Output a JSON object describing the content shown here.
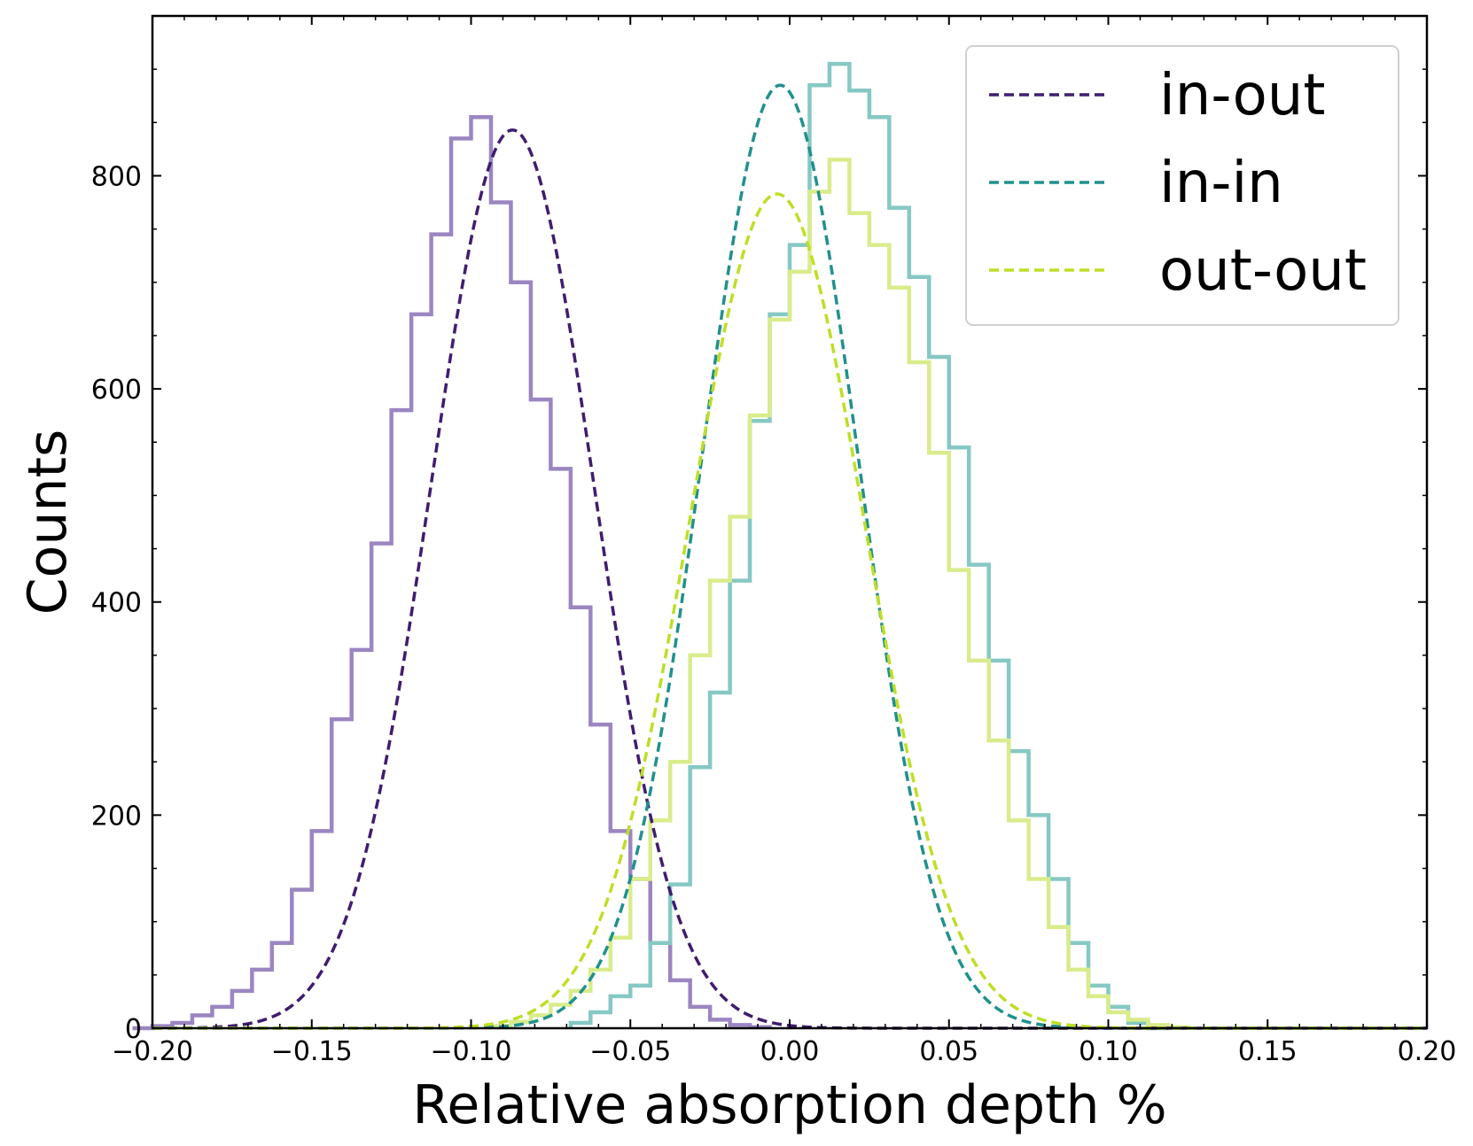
{
  "chart_data": {
    "type": "histogram",
    "xlabel": "Relative absorption depth %",
    "ylabel": "Counts",
    "xlim": [
      -0.2,
      0.2
    ],
    "ylim": [
      0,
      950
    ],
    "xticks": [
      -0.2,
      -0.15,
      -0.1,
      -0.05,
      0.0,
      0.05,
      0.1,
      0.15,
      0.2
    ],
    "xtick_labels": [
      "−0.20",
      "−0.15",
      "−0.10",
      "−0.05",
      "0.00",
      "0.05",
      "0.10",
      "0.15",
      "0.20"
    ],
    "yticks": [
      0,
      200,
      400,
      600,
      800
    ],
    "ytick_labels": [
      "0",
      "200",
      "400",
      "600",
      "800"
    ],
    "grid": false,
    "legend_position": "top-right",
    "bin_width": 0.00625,
    "series": [
      {
        "name": "in-out",
        "color": "#3f1d6e",
        "hist_color": "#9b86c2",
        "fit": {
          "mean": -0.087,
          "sigma": 0.0255,
          "amplitude": 843
        },
        "hist": {
          "start": -0.20625,
          "counts": [
            0,
            2,
            5,
            12,
            20,
            35,
            55,
            80,
            130,
            185,
            290,
            355,
            455,
            580,
            670,
            745,
            835,
            855,
            775,
            700,
            590,
            525,
            395,
            285,
            185,
            140,
            80,
            45,
            20,
            8,
            3,
            1
          ]
        }
      },
      {
        "name": "in-in",
        "color": "#21908d",
        "hist_color": "#86c8c4",
        "fit": {
          "mean": -0.003,
          "sigma": 0.0245,
          "amplitude": 885
        },
        "hist": {
          "start": -0.06875,
          "counts": [
            5,
            15,
            30,
            40,
            80,
            135,
            245,
            315,
            420,
            570,
            670,
            735,
            885,
            905,
            880,
            855,
            770,
            705,
            630,
            545,
            435,
            345,
            260,
            200,
            140,
            80,
            40,
            20,
            5,
            0
          ]
        }
      },
      {
        "name": "out-out",
        "color": "#bddf26",
        "hist_color": "#d9ec8c",
        "fit": {
          "mean": -0.004,
          "sigma": 0.0275,
          "amplitude": 783
        },
        "hist": {
          "start": -0.09375,
          "counts": [
            2,
            6,
            12,
            22,
            35,
            55,
            85,
            140,
            195,
            250,
            350,
            420,
            480,
            575,
            665,
            710,
            785,
            815,
            765,
            735,
            695,
            625,
            540,
            430,
            345,
            270,
            195,
            140,
            95,
            55,
            30,
            15,
            8,
            3,
            1
          ]
        }
      }
    ]
  }
}
